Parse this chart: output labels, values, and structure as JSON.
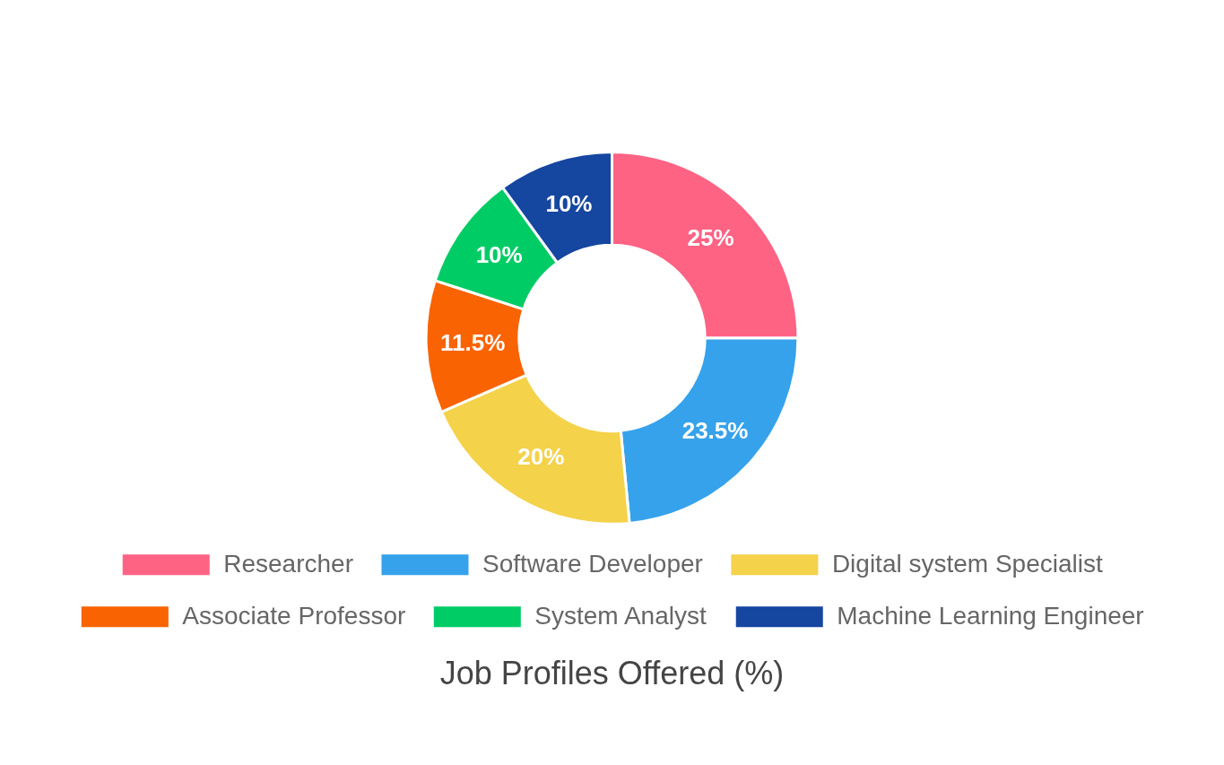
{
  "chart_data": {
    "type": "donut",
    "title": "Job Profiles Offered (%)",
    "categories": [
      "Researcher",
      "Software Developer",
      "Digital system Specialist",
      "Associate Professor",
      "System Analyst",
      "Machine Learning Engineer"
    ],
    "values": [
      25,
      23.5,
      20,
      11.5,
      10,
      10
    ],
    "value_labels": [
      "25%",
      "23.5%",
      "20%",
      "11.5%",
      "10%",
      "10%"
    ],
    "colors": [
      "#ff6384",
      "#36a2eb",
      "#f4d24a",
      "#f96302",
      "#00cc66",
      "#1546a0"
    ],
    "legend": "bottom"
  }
}
